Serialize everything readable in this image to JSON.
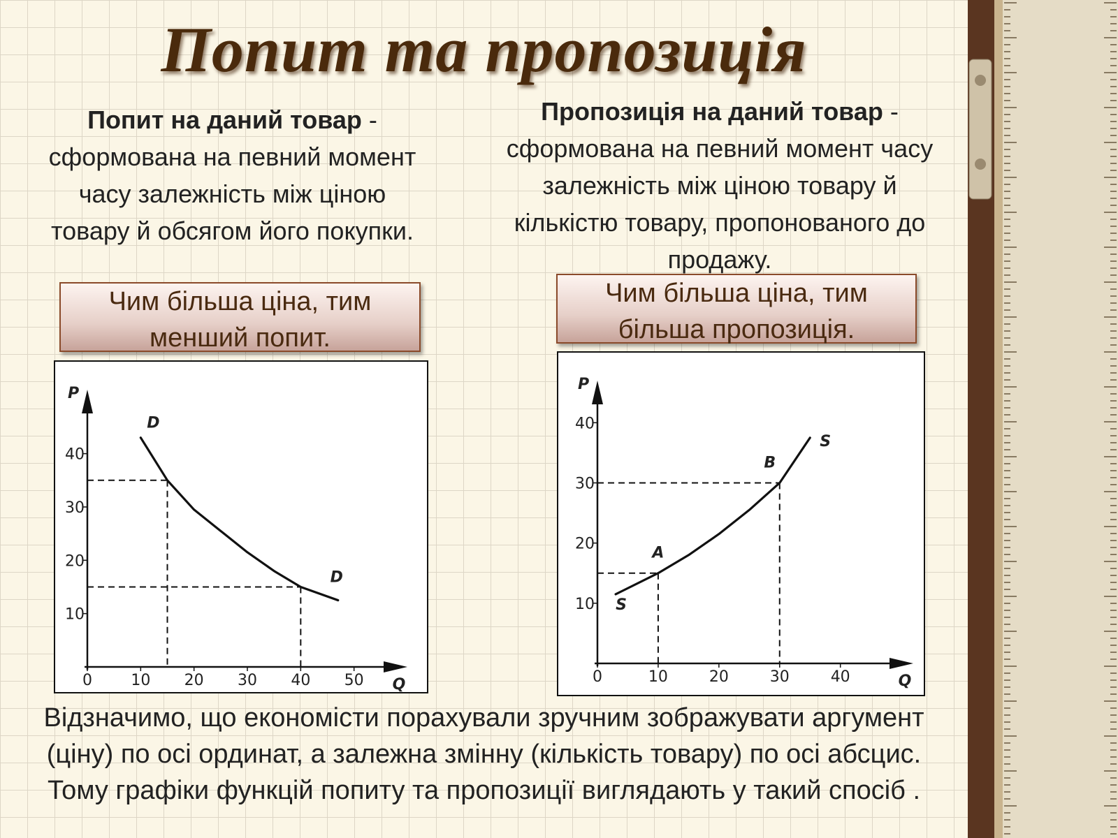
{
  "title": "Попит та пропозиція",
  "definitions": [
    {
      "term": "Попит на даний товар",
      "dash": "-",
      "lines": [
        "сформована на певний момент",
        "часу залежність між ціною",
        "товару й обсягом його покупки."
      ]
    },
    {
      "term": "Пропозиція на даний товар",
      "dash": "-",
      "lines": [
        "сформована на певний момент часу",
        "залежність між ціною товару й",
        "кількістю товару, пропонованого до",
        "продажу."
      ]
    }
  ],
  "callouts": [
    {
      "lines": [
        "Чим більша ціна, тим",
        "менший попит."
      ]
    },
    {
      "lines": [
        "Чим більша ціна, тим",
        "більша пропозиція."
      ]
    }
  ],
  "chart_data": [
    {
      "type": "line",
      "x_label": "Q",
      "y_label": "P",
      "xlim": [
        0,
        60
      ],
      "ylim": [
        0,
        52
      ],
      "xticks": [
        0,
        10,
        20,
        30,
        40,
        50
      ],
      "yticks": [
        10,
        20,
        30,
        40
      ],
      "series": [
        {
          "name": "D",
          "color": "#111111",
          "x": [
            10,
            15,
            20,
            25,
            30,
            35,
            40,
            47
          ],
          "values": [
            43,
            35,
            29.5,
            25.5,
            21.5,
            18,
            15,
            12.5
          ]
        }
      ],
      "points": [
        {
          "x": 15,
          "y": 35
        },
        {
          "x": 40,
          "y": 15
        }
      ]
    },
    {
      "type": "line",
      "x_label": "Q",
      "y_label": "P",
      "xlim": [
        0,
        52
      ],
      "ylim": [
        0,
        47
      ],
      "xticks": [
        0,
        10,
        20,
        30,
        40
      ],
      "yticks": [
        10,
        20,
        30,
        40
      ],
      "series": [
        {
          "name": "S",
          "color": "#111111",
          "x": [
            3,
            10,
            15,
            20,
            25,
            30,
            35
          ],
          "values": [
            11.5,
            15,
            18,
            21.5,
            25.5,
            30,
            37.5
          ]
        }
      ],
      "points": [
        {
          "label": "A",
          "x": 10,
          "y": 15
        },
        {
          "label": "B",
          "x": 30,
          "y": 30
        }
      ]
    }
  ],
  "footer": [
    "Відзначимо, що економісти порахували зручним зображувати аргумент",
    "(ціну) по осі ординат, а залежна змінну (кількість товару) по осі абсцис.",
    "Тому графіки функцій попиту та пропозиції виглядають у такий спосіб ."
  ]
}
